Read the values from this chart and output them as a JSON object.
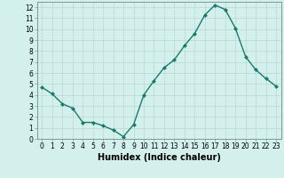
{
  "x": [
    0,
    1,
    2,
    3,
    4,
    5,
    6,
    7,
    8,
    9,
    10,
    11,
    12,
    13,
    14,
    15,
    16,
    17,
    18,
    19,
    20,
    21,
    22,
    23
  ],
  "y": [
    4.7,
    4.1,
    3.2,
    2.8,
    1.5,
    1.5,
    1.2,
    0.8,
    0.2,
    1.3,
    4.0,
    5.3,
    6.5,
    7.2,
    8.5,
    9.6,
    11.3,
    12.2,
    11.8,
    10.1,
    7.5,
    6.3,
    5.5,
    4.8
  ],
  "xlabel": "Humidex (Indice chaleur)",
  "line_color": "#1a7a6e",
  "marker": "D",
  "marker_size": 2.0,
  "bg_color": "#d4f0ec",
  "grid_color": "#b8d8d4",
  "xlim": [
    -0.5,
    23.5
  ],
  "ylim": [
    0,
    12.5
  ],
  "xticks": [
    0,
    1,
    2,
    3,
    4,
    5,
    6,
    7,
    8,
    9,
    10,
    11,
    12,
    13,
    14,
    15,
    16,
    17,
    18,
    19,
    20,
    21,
    22,
    23
  ],
  "yticks": [
    0,
    1,
    2,
    3,
    4,
    5,
    6,
    7,
    8,
    9,
    10,
    11,
    12
  ],
  "tick_fontsize": 5.5,
  "xlabel_fontsize": 7.0,
  "linewidth": 1.0
}
